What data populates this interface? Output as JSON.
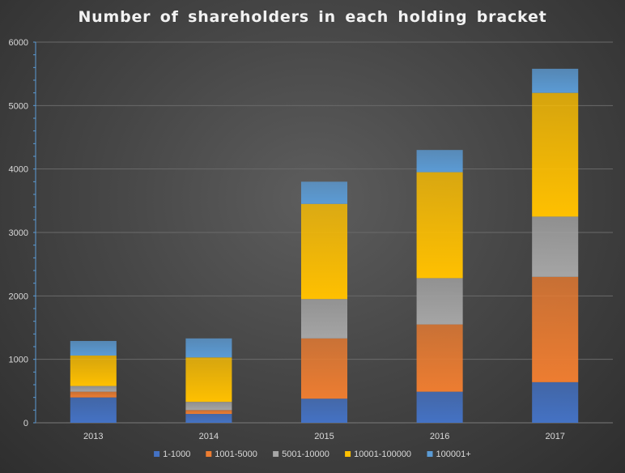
{
  "chart_data": {
    "type": "bar",
    "stacked": true,
    "title": "Number of shareholders in each holding bracket",
    "xlabel": "",
    "ylabel": "",
    "categories": [
      "2013",
      "2014",
      "2015",
      "2016",
      "2017"
    ],
    "ylim": [
      0,
      6000
    ],
    "yticks": [
      0,
      1000,
      2000,
      3000,
      4000,
      5000,
      6000
    ],
    "grid": true,
    "legend_position": "bottom",
    "series": [
      {
        "name": "1-1000",
        "color": "#4472c4",
        "values": [
          400,
          140,
          380,
          490,
          640
        ]
      },
      {
        "name": "1001-5000",
        "color": "#ed7d31",
        "values": [
          90,
          60,
          950,
          1060,
          1660
        ]
      },
      {
        "name": "5001-10000",
        "color": "#a5a5a5",
        "values": [
          90,
          130,
          620,
          730,
          950
        ]
      },
      {
        "name": "10001-100000",
        "color": "#ffc000",
        "values": [
          480,
          700,
          1500,
          1670,
          1950
        ]
      },
      {
        "name": "100001+",
        "color": "#5b9bd5",
        "values": [
          230,
          300,
          350,
          350,
          380
        ]
      }
    ]
  }
}
